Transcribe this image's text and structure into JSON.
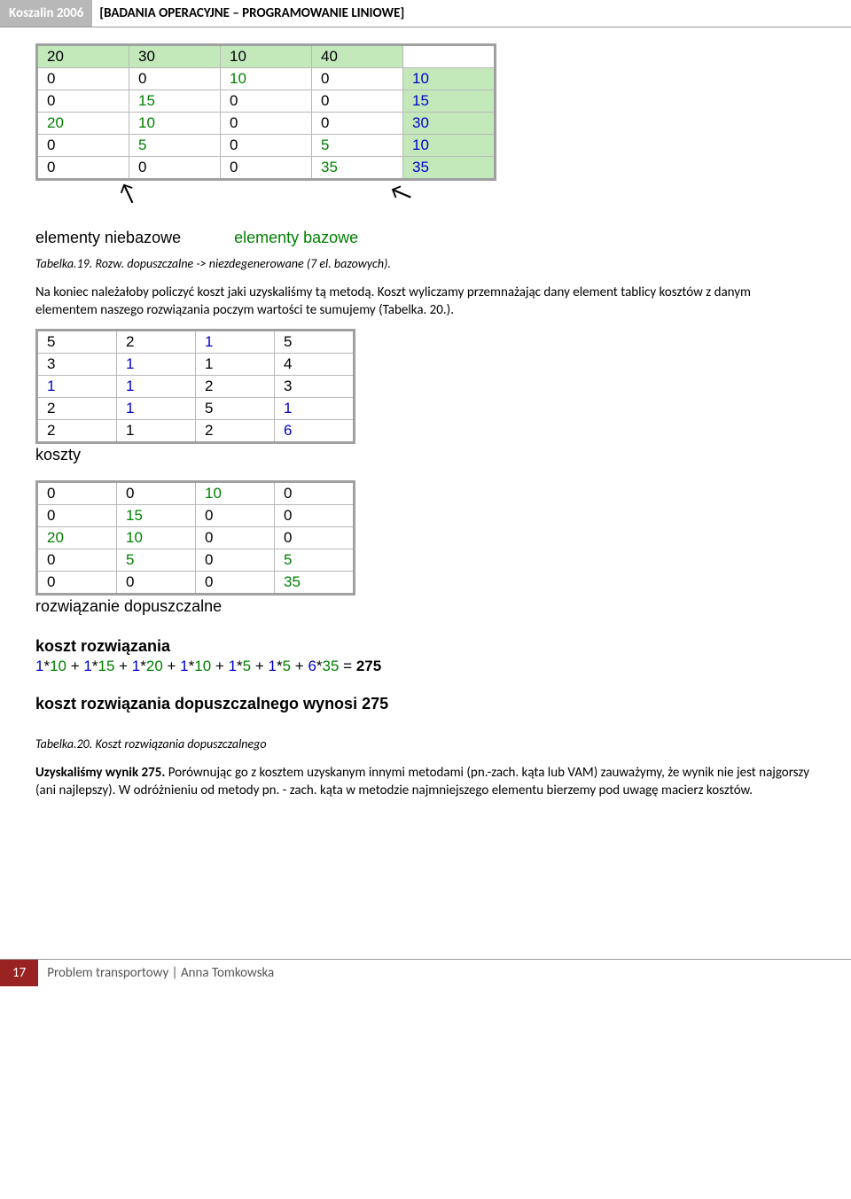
{
  "header": {
    "left": "Koszalin 2006",
    "right": "[BADANIA OPERACYJNE – PROGRAMOWANIE LINIOWE]"
  },
  "colors": {
    "green_header_bg": "#c3e9bb",
    "blue_text": "#0000c8",
    "green_text": "#008000",
    "black": "#000000",
    "grey_border": "#b8b8b8",
    "bold_border": "#a0a0a0"
  },
  "table1": {
    "header_row": [
      {
        "v": "20",
        "color": "#000000",
        "bg": "#c3e9bb"
      },
      {
        "v": "30",
        "color": "#000000",
        "bg": "#c3e9bb"
      },
      {
        "v": "10",
        "color": "#000000",
        "bg": "#c3e9bb"
      },
      {
        "v": "40",
        "color": "#000000",
        "bg": "#c3e9bb"
      }
    ],
    "rows": [
      [
        {
          "v": "0",
          "color": "#000000"
        },
        {
          "v": "0",
          "color": "#000000"
        },
        {
          "v": "10",
          "color": "#008000"
        },
        {
          "v": "0",
          "color": "#000000"
        },
        {
          "v": "10",
          "color": "#0000c8",
          "bg": "#c3e9bb"
        }
      ],
      [
        {
          "v": "0",
          "color": "#000000"
        },
        {
          "v": "15",
          "color": "#008000"
        },
        {
          "v": "0",
          "color": "#000000"
        },
        {
          "v": "0",
          "color": "#000000"
        },
        {
          "v": "15",
          "color": "#0000c8",
          "bg": "#c3e9bb"
        }
      ],
      [
        {
          "v": "20",
          "color": "#008000"
        },
        {
          "v": "10",
          "color": "#008000"
        },
        {
          "v": "0",
          "color": "#000000"
        },
        {
          "v": "0",
          "color": "#000000"
        },
        {
          "v": "30",
          "color": "#0000c8",
          "bg": "#c3e9bb"
        }
      ],
      [
        {
          "v": "0",
          "color": "#000000"
        },
        {
          "v": "5",
          "color": "#008000"
        },
        {
          "v": "0",
          "color": "#000000"
        },
        {
          "v": "5",
          "color": "#008000"
        },
        {
          "v": "10",
          "color": "#0000c8",
          "bg": "#c3e9bb"
        }
      ],
      [
        {
          "v": "0",
          "color": "#000000"
        },
        {
          "v": "0",
          "color": "#000000"
        },
        {
          "v": "0",
          "color": "#000000"
        },
        {
          "v": "35",
          "color": "#008000"
        },
        {
          "v": "35",
          "color": "#0000c8",
          "bg": "#c3e9bb"
        }
      ]
    ],
    "arrow_labels": {
      "left": "elementy niebazowe",
      "right": "elementy bazowe",
      "right_color": "#008000"
    }
  },
  "caption1": "Tabelka.19. Rozw. dopuszczalne -> niezdegenerowane (7 el. bazowych).",
  "para1": "Na koniec należałoby policzyć koszt jaki uzyskaliśmy tą metodą. Koszt wyliczamy przemnażając dany element tablicy kosztów z danym elementem naszego rozwiązania poczym wartości te sumujemy (Tabelka. 20.).",
  "table2": {
    "rows": [
      [
        {
          "v": "5",
          "color": "#000000"
        },
        {
          "v": "2",
          "color": "#000000"
        },
        {
          "v": "1",
          "color": "#0000c8"
        },
        {
          "v": "5",
          "color": "#000000"
        }
      ],
      [
        {
          "v": "3",
          "color": "#000000"
        },
        {
          "v": "1",
          "color": "#0000c8"
        },
        {
          "v": "1",
          "color": "#000000"
        },
        {
          "v": "4",
          "color": "#000000"
        }
      ],
      [
        {
          "v": "1",
          "color": "#0000c8"
        },
        {
          "v": "1",
          "color": "#0000c8"
        },
        {
          "v": "2",
          "color": "#000000"
        },
        {
          "v": "3",
          "color": "#000000"
        }
      ],
      [
        {
          "v": "2",
          "color": "#000000"
        },
        {
          "v": "1",
          "color": "#0000c8"
        },
        {
          "v": "5",
          "color": "#000000"
        },
        {
          "v": "1",
          "color": "#0000c8"
        }
      ],
      [
        {
          "v": "2",
          "color": "#000000"
        },
        {
          "v": "1",
          "color": "#000000"
        },
        {
          "v": "2",
          "color": "#000000"
        },
        {
          "v": "6",
          "color": "#0000c8"
        }
      ]
    ],
    "label": "koszty"
  },
  "table3": {
    "rows": [
      [
        {
          "v": "0",
          "color": "#000000"
        },
        {
          "v": "0",
          "color": "#000000"
        },
        {
          "v": "10",
          "color": "#008000"
        },
        {
          "v": "0",
          "color": "#000000"
        }
      ],
      [
        {
          "v": "0",
          "color": "#000000"
        },
        {
          "v": "15",
          "color": "#008000"
        },
        {
          "v": "0",
          "color": "#000000"
        },
        {
          "v": "0",
          "color": "#000000"
        }
      ],
      [
        {
          "v": "20",
          "color": "#008000"
        },
        {
          "v": "10",
          "color": "#008000"
        },
        {
          "v": "0",
          "color": "#000000"
        },
        {
          "v": "0",
          "color": "#000000"
        }
      ],
      [
        {
          "v": "0",
          "color": "#000000"
        },
        {
          "v": "5",
          "color": "#008000"
        },
        {
          "v": "0",
          "color": "#000000"
        },
        {
          "v": "5",
          "color": "#008000"
        }
      ],
      [
        {
          "v": "0",
          "color": "#000000"
        },
        {
          "v": "0",
          "color": "#000000"
        },
        {
          "v": "0",
          "color": "#000000"
        },
        {
          "v": "35",
          "color": "#008000"
        }
      ]
    ],
    "label": "rozwiązanie dopuszczalne"
  },
  "cost_calc": {
    "heading": "koszt rozwiązania",
    "terms": [
      {
        "a": "1",
        "ac": "#0000c8",
        "b": "10",
        "bc": "#008000"
      },
      {
        "a": "1",
        "ac": "#0000c8",
        "b": "15",
        "bc": "#008000"
      },
      {
        "a": "1",
        "ac": "#0000c8",
        "b": "20",
        "bc": "#008000"
      },
      {
        "a": "1",
        "ac": "#0000c8",
        "b": "10",
        "bc": "#008000"
      },
      {
        "a": "1",
        "ac": "#0000c8",
        "b": "5",
        "bc": "#008000"
      },
      {
        "a": "1",
        "ac": "#0000c8",
        "b": "5",
        "bc": "#008000"
      },
      {
        "a": "6",
        "ac": "#0000c8",
        "b": "35",
        "bc": "#008000"
      }
    ],
    "result": "275",
    "summary": "koszt rozwiązania dopuszczalnego wynosi 275"
  },
  "caption2": "Tabelka.20. Koszt rozwiązania dopuszczalnego",
  "para2_prefix": "Uzyskaliśmy wynik 275.",
  "para2_rest": " Porównując go z kosztem uzyskanym innymi metodami (pn.-zach. kąta lub VAM) zauważymy, że wynik nie jest najgorszy (ani najlepszy). W odróżnieniu od metody pn. - zach. kąta w metodzie najmniejszego elementu bierzemy pod uwagę macierz kosztów.",
  "footer": {
    "page": "17",
    "text": "Problem transportowy | Anna Tomkowska"
  }
}
